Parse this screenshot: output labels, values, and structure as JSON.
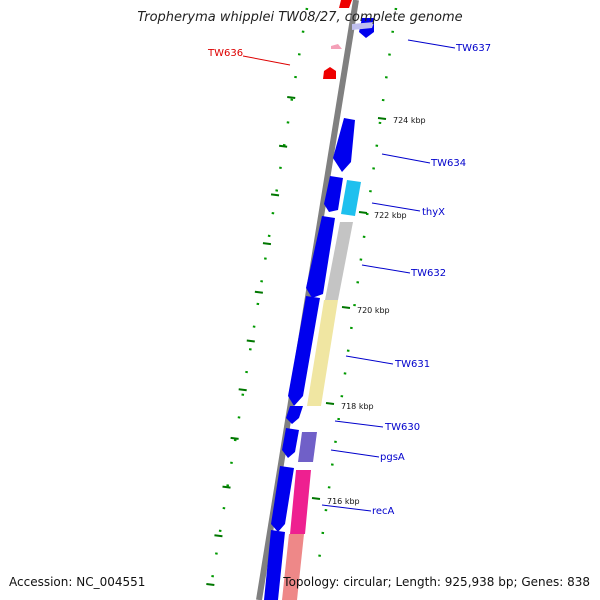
{
  "title": "Tropheryma whipplei TW08/27, complete genome",
  "footer": {
    "accession": "Accession: NC_004551",
    "summary": "Topology: circular; Length: 925,938 bp; Genes: 838"
  },
  "ticks": [
    {
      "label": "724 kbp"
    },
    {
      "label": "722 kbp"
    },
    {
      "label": "720 kbp"
    },
    {
      "label": "718 kbp"
    },
    {
      "label": "716 kbp"
    }
  ],
  "genes": [
    {
      "label": "TW637",
      "color": "#0000cc"
    },
    {
      "label": "TW636",
      "color": "#dd0000"
    },
    {
      "label": "TW634",
      "color": "#0000cc"
    },
    {
      "label": "thyX",
      "color": "#0000cc"
    },
    {
      "label": "TW632",
      "color": "#0000cc"
    },
    {
      "label": "TW631",
      "color": "#0000cc"
    },
    {
      "label": "TW630",
      "color": "#0000cc"
    },
    {
      "label": "pgsA",
      "color": "#0000cc"
    },
    {
      "label": "recA",
      "color": "#0000cc"
    }
  ],
  "colors": {
    "backbone": "#808080",
    "cds": "#0000ee",
    "tick": "#007700",
    "dots": "#009900",
    "thyX": "#1ec0ee",
    "TW632": "#c4c4c4",
    "TW631": "#f0e6a2",
    "pgsA": "#7060c8",
    "recA": "#ee2090",
    "pink_segment": "#ee8888"
  }
}
